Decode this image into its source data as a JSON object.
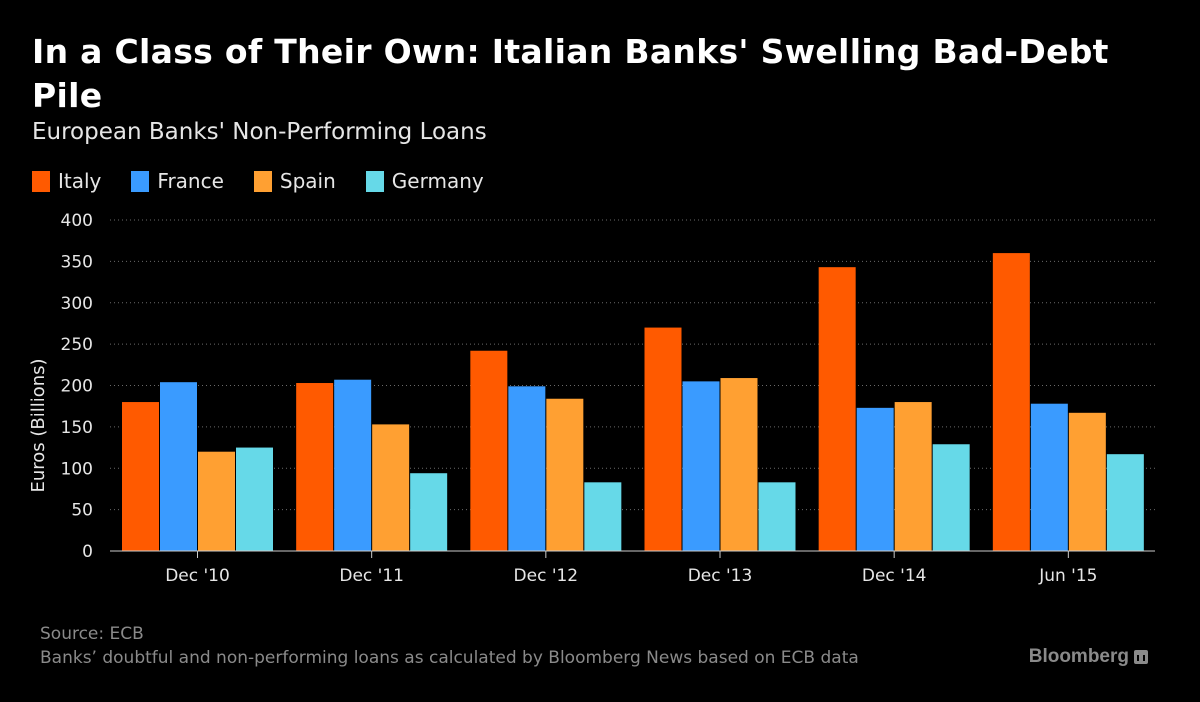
{
  "header": {
    "title": "In a Class of Their Own: Italian Banks' Swelling Bad-Debt Pile",
    "subtitle": "European Banks' Non-Performing Loans"
  },
  "footer": {
    "source": "Source: ECB",
    "note": "Banks’ doubtful and non-performing loans as calculated by Bloomberg News based on ECB data",
    "brand": "Bloomberg"
  },
  "chart_data": {
    "type": "bar",
    "title": "In a Class of Their Own: Italian Banks' Swelling Bad-Debt Pile",
    "subtitle": "European Banks' Non-Performing Loans",
    "ylabel": "Euros (Billions)",
    "xlabel": "",
    "ylim": [
      0,
      400
    ],
    "yticks": [
      0,
      50,
      100,
      150,
      200,
      250,
      300,
      350,
      400
    ],
    "grid": true,
    "legend_position": "top-left",
    "categories": [
      "Dec '10",
      "Dec '11",
      "Dec '12",
      "Dec '13",
      "Dec '14",
      "Jun '15"
    ],
    "series": [
      {
        "name": "Italy",
        "color": "#ff5a00",
        "values": [
          180,
          203,
          242,
          270,
          343,
          360
        ]
      },
      {
        "name": "France",
        "color": "#3a9bff",
        "values": [
          204,
          207,
          199,
          205,
          173,
          178
        ]
      },
      {
        "name": "Spain",
        "color": "#ffa032",
        "values": [
          120,
          153,
          184,
          209,
          180,
          167
        ]
      },
      {
        "name": "Germany",
        "color": "#66d9e8",
        "values": [
          125,
          94,
          83,
          83,
          129,
          117
        ]
      }
    ]
  }
}
